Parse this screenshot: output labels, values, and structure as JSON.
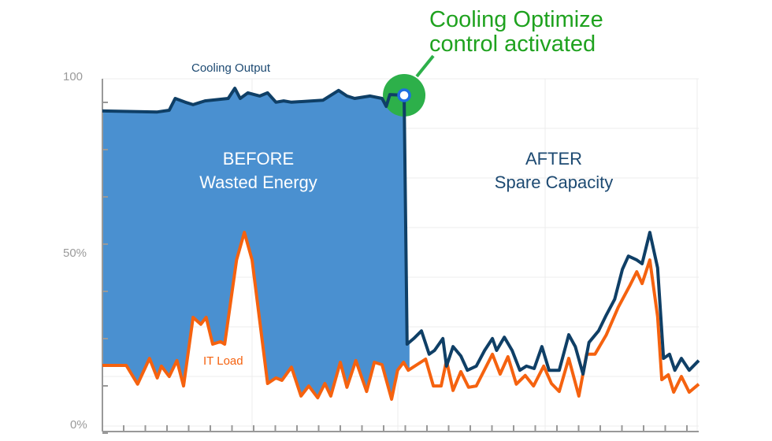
{
  "chart_data": {
    "type": "line",
    "title": "",
    "xlabel": "",
    "ylabel": "",
    "ylim": [
      0,
      100
    ],
    "xlim": [
      0,
      100
    ],
    "y_tick_labels": [
      {
        "value": 100,
        "label": "100"
      },
      {
        "value": 50,
        "label": "50%"
      },
      {
        "value": 0,
        "label": "0%"
      }
    ],
    "grid": true,
    "colors": {
      "cooling": "#0f3f66",
      "it_load": "#f5620f",
      "fill": "#4a90d0",
      "annotation": "#1fa21f",
      "marker_ring": "#1e6fe0"
    },
    "series": [
      {
        "name": "Cooling Output",
        "points": [
          [
            0,
            90.3
          ],
          [
            9.2,
            90.0
          ],
          [
            11.2,
            90.5
          ],
          [
            12.2,
            93.9
          ],
          [
            13.9,
            92.8
          ],
          [
            15.2,
            92.1
          ],
          [
            17.2,
            93.2
          ],
          [
            21.1,
            93.9
          ],
          [
            22.2,
            96.8
          ],
          [
            23.1,
            93.9
          ],
          [
            24.4,
            95.5
          ],
          [
            26.4,
            94.6
          ],
          [
            27.7,
            95.5
          ],
          [
            29.1,
            92.8
          ],
          [
            30.4,
            93.2
          ],
          [
            31.7,
            92.8
          ],
          [
            37.0,
            93.4
          ],
          [
            39.6,
            96.2
          ],
          [
            41.0,
            94.6
          ],
          [
            42.3,
            93.9
          ],
          [
            44.9,
            94.6
          ],
          [
            46.9,
            93.9
          ],
          [
            47.6,
            91.6
          ],
          [
            48.2,
            95.0
          ],
          [
            50.6,
            94.8
          ],
          [
            51.1,
            23.3
          ],
          [
            52.2,
            24.9
          ],
          [
            53.5,
            27.1
          ],
          [
            54.8,
            20.4
          ],
          [
            55.7,
            21.5
          ],
          [
            57.1,
            24.9
          ],
          [
            57.7,
            17.0
          ],
          [
            58.8,
            22.6
          ],
          [
            60.1,
            19.9
          ],
          [
            61.2,
            15.8
          ],
          [
            62.7,
            17.0
          ],
          [
            64.1,
            21.5
          ],
          [
            65.4,
            24.9
          ],
          [
            66.1,
            21.5
          ],
          [
            67.4,
            25.3
          ],
          [
            68.7,
            21.5
          ],
          [
            70.0,
            15.8
          ],
          [
            71.1,
            17.0
          ],
          [
            72.4,
            16.3
          ],
          [
            73.7,
            22.6
          ],
          [
            74.9,
            15.8
          ],
          [
            76.6,
            15.8
          ],
          [
            78.2,
            26.0
          ],
          [
            79.3,
            22.6
          ],
          [
            80.6,
            14.7
          ],
          [
            81.6,
            23.8
          ],
          [
            83.2,
            27.1
          ],
          [
            84.5,
            31.7
          ],
          [
            85.9,
            36.2
          ],
          [
            87.2,
            44.8
          ],
          [
            88.2,
            48.6
          ],
          [
            89.6,
            47.5
          ],
          [
            90.5,
            46.4
          ],
          [
            91.8,
            55.4
          ],
          [
            93.1,
            45.2
          ],
          [
            94.1,
            19.2
          ],
          [
            95.1,
            20.4
          ],
          [
            96.0,
            15.8
          ],
          [
            97.1,
            19.2
          ],
          [
            98.4,
            15.8
          ],
          [
            100,
            18.6
          ]
        ]
      },
      {
        "name": "IT Load",
        "points": [
          [
            0,
            17.2
          ],
          [
            4.0,
            17.2
          ],
          [
            5.9,
            11.8
          ],
          [
            7.9,
            19.2
          ],
          [
            9.2,
            13.6
          ],
          [
            9.9,
            17.0
          ],
          [
            11.2,
            14.0
          ],
          [
            12.5,
            18.6
          ],
          [
            13.6,
            11.3
          ],
          [
            15.2,
            31.0
          ],
          [
            16.5,
            29.0
          ],
          [
            17.4,
            31.0
          ],
          [
            18.5,
            23.3
          ],
          [
            19.8,
            24.0
          ],
          [
            20.5,
            23.3
          ],
          [
            22.5,
            47.5
          ],
          [
            23.8,
            55.4
          ],
          [
            25.1,
            47.5
          ],
          [
            27.7,
            12.0
          ],
          [
            29.1,
            13.6
          ],
          [
            30.1,
            12.9
          ],
          [
            31.7,
            16.7
          ],
          [
            33.3,
            8.4
          ],
          [
            34.6,
            11.3
          ],
          [
            36.1,
            7.9
          ],
          [
            37.3,
            12.0
          ],
          [
            38.3,
            8.4
          ],
          [
            39.9,
            18.1
          ],
          [
            41.0,
            10.9
          ],
          [
            42.5,
            18.6
          ],
          [
            44.3,
            9.7
          ],
          [
            45.6,
            18.1
          ],
          [
            46.9,
            17.4
          ],
          [
            48.5,
            7.5
          ],
          [
            49.5,
            15.8
          ],
          [
            50.5,
            18.1
          ],
          [
            51.3,
            15.8
          ],
          [
            54.2,
            19.0
          ],
          [
            55.5,
            11.3
          ],
          [
            56.8,
            11.3
          ],
          [
            57.7,
            18.6
          ],
          [
            58.8,
            10.0
          ],
          [
            60.1,
            15.4
          ],
          [
            61.4,
            10.9
          ],
          [
            62.7,
            11.3
          ],
          [
            65.4,
            20.4
          ],
          [
            66.7,
            14.7
          ],
          [
            68.0,
            19.7
          ],
          [
            69.4,
            11.8
          ],
          [
            70.9,
            14.3
          ],
          [
            72.3,
            11.3
          ],
          [
            74.0,
            17.0
          ],
          [
            75.3,
            12.0
          ],
          [
            76.6,
            9.7
          ],
          [
            78.2,
            19.2
          ],
          [
            79.9,
            8.4
          ],
          [
            81.2,
            20.4
          ],
          [
            82.6,
            20.4
          ],
          [
            84.5,
            26.0
          ],
          [
            86.5,
            33.9
          ],
          [
            88.5,
            40.3
          ],
          [
            89.6,
            44.1
          ],
          [
            90.5,
            40.7
          ],
          [
            91.8,
            47.5
          ],
          [
            93.1,
            31.2
          ],
          [
            93.8,
            13.1
          ],
          [
            94.9,
            14.5
          ],
          [
            95.8,
            9.5
          ],
          [
            97.1,
            14.0
          ],
          [
            98.4,
            9.5
          ],
          [
            100,
            11.8
          ]
        ]
      }
    ],
    "annotations": {
      "activation": {
        "x": 50.6,
        "y": 94.8,
        "line1": "Cooling Optimize",
        "line2": "control activated"
      },
      "before": {
        "line1": "BEFORE",
        "line2": "Wasted Energy"
      },
      "after": {
        "line1": "AFTER",
        "line2": "Spare Capacity"
      }
    }
  }
}
